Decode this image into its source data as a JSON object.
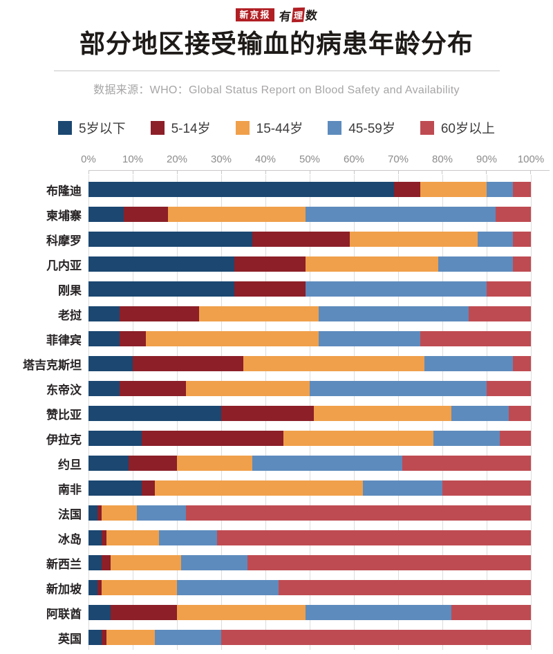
{
  "logo": {
    "brand": "新京报",
    "sub_first": "有",
    "sub_mid": "理",
    "sub_last": "数"
  },
  "header": {
    "title": "部分地区接受输血的病患年龄分布",
    "source": "数据来源：WHO：Global Status Report on Blood Safety and Availability"
  },
  "colors": {
    "brand_red": "#b01f24",
    "gridline": "#dcdcdc",
    "axis_text": "#8d8b8b",
    "title_text": "#1d1a18",
    "source_text": "#a7a5a5"
  },
  "chart_data": {
    "type": "bar",
    "stacked": true,
    "orientation": "horizontal",
    "unit": "percent",
    "xlim": [
      0,
      100
    ],
    "grid": true,
    "legend_position": "top",
    "x_ticks": [
      "0%",
      "10%",
      "20%",
      "30%",
      "40%",
      "50%",
      "60%",
      "70%",
      "80%",
      "90%",
      "100%"
    ],
    "series": [
      {
        "name": "5岁以下",
        "color": "#1b4771"
      },
      {
        "name": "5-14岁",
        "color": "#8c1f28"
      },
      {
        "name": "15-44岁",
        "color": "#f0a04b"
      },
      {
        "name": "45-59岁",
        "color": "#5d8bbd"
      },
      {
        "name": "60岁以上",
        "color": "#bf4b52"
      }
    ],
    "rows": [
      {
        "label": "布隆迪",
        "values": [
          69,
          6,
          15,
          6,
          4
        ]
      },
      {
        "label": "柬埔寨",
        "values": [
          8,
          10,
          31,
          43,
          8
        ]
      },
      {
        "label": "科摩罗",
        "values": [
          37,
          22,
          29,
          8,
          4
        ]
      },
      {
        "label": "几内亚",
        "values": [
          33,
          16,
          30,
          17,
          4
        ]
      },
      {
        "label": "刚果",
        "values": [
          33,
          16,
          0,
          41,
          10
        ]
      },
      {
        "label": "老挝",
        "values": [
          7,
          18,
          27,
          34,
          14
        ]
      },
      {
        "label": "菲律宾",
        "values": [
          7,
          6,
          39,
          23,
          25
        ]
      },
      {
        "label": "塔吉克斯坦",
        "values": [
          10,
          25,
          41,
          20,
          4
        ]
      },
      {
        "label": "东帝汶",
        "values": [
          7,
          15,
          28,
          40,
          10
        ]
      },
      {
        "label": "赞比亚",
        "values": [
          30,
          21,
          31,
          13,
          5
        ]
      },
      {
        "label": "伊拉克",
        "values": [
          12,
          32,
          34,
          15,
          7
        ]
      },
      {
        "label": "约旦",
        "values": [
          9,
          11,
          17,
          34,
          29
        ]
      },
      {
        "label": "南非",
        "values": [
          12,
          3,
          47,
          18,
          20
        ]
      },
      {
        "label": "法国",
        "values": [
          2,
          1,
          8,
          11,
          78
        ]
      },
      {
        "label": "冰岛",
        "values": [
          3,
          1,
          12,
          13,
          71
        ]
      },
      {
        "label": "新西兰",
        "values": [
          3,
          2,
          16,
          15,
          64
        ]
      },
      {
        "label": "新加坡",
        "values": [
          2,
          1,
          17,
          23,
          57
        ]
      },
      {
        "label": "阿联酋",
        "values": [
          5,
          15,
          29,
          33,
          18
        ]
      },
      {
        "label": "英国",
        "values": [
          3,
          1,
          11,
          15,
          70
        ]
      }
    ]
  }
}
